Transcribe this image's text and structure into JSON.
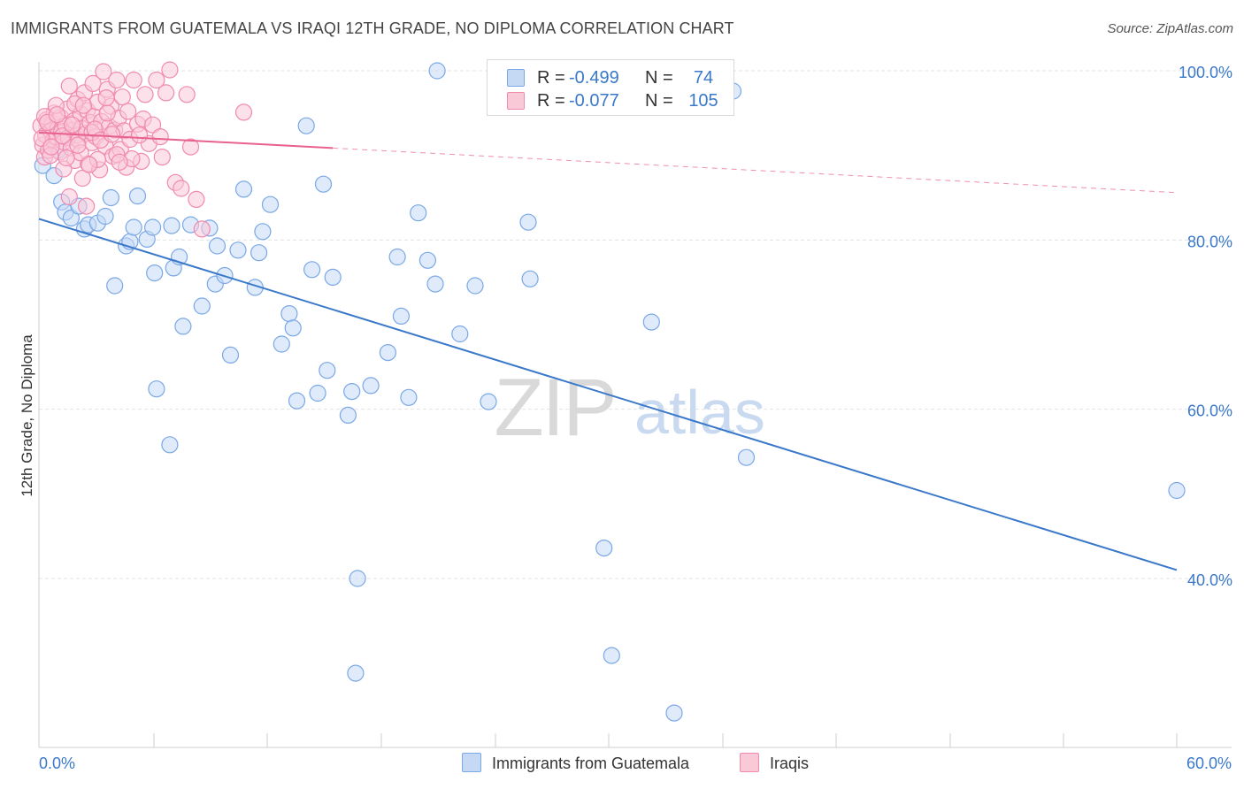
{
  "header": {
    "title": "IMMIGRANTS FROM GUATEMALA VS IRAQI 12TH GRADE, NO DIPLOMA CORRELATION CHART",
    "source": "Source: ZipAtlas.com"
  },
  "watermark": {
    "zip": "ZIP",
    "atlas": "atlas"
  },
  "legend": {
    "r_label": "R =",
    "n_label": "N =",
    "rows": [
      {
        "r": "-0.499",
        "n": "74",
        "fill": "#c5d9f5",
        "stroke": "#7aa8e6"
      },
      {
        "r": "-0.077",
        "n": "105",
        "fill": "#f9c9d8",
        "stroke": "#f08aae"
      }
    ]
  },
  "chart_data": {
    "type": "scatter",
    "title": "IMMIGRANTS FROM GUATEMALA VS IRAQI 12TH GRADE, NO DIPLOMA CORRELATION CHART",
    "xlabel": "",
    "ylabel": "12th Grade, No Diploma",
    "xlim": [
      0,
      60
    ],
    "ylim": [
      20,
      102
    ],
    "x_tick_labels": [
      "0.0%",
      "60.0%"
    ],
    "y_ticks": [
      40,
      60,
      80,
      100
    ],
    "y_tick_labels": [
      "40.0%",
      "60.0%",
      "80.0%",
      "100.0%"
    ],
    "grid": true,
    "legend_position": "bottom",
    "series": [
      {
        "name": "Immigrants from Guatemala",
        "color": "#3a78c9",
        "fill": "#c5d9f5",
        "stroke": "#7aa8e6",
        "R": -0.499,
        "N": 74,
        "trend": {
          "x0": 0,
          "y0": 82.5,
          "x1": 60,
          "y1": 41.0,
          "solid_until": 60
        },
        "points": [
          [
            0.2,
            88.8
          ],
          [
            0.8,
            87.6
          ],
          [
            1.2,
            84.5
          ],
          [
            1.4,
            83.3
          ],
          [
            1.7,
            82.6
          ],
          [
            2.1,
            84.0
          ],
          [
            2.4,
            81.3
          ],
          [
            2.6,
            81.8
          ],
          [
            3.1,
            82.0
          ],
          [
            3.5,
            82.8
          ],
          [
            3.8,
            85.0
          ],
          [
            4.6,
            79.3
          ],
          [
            4.0,
            74.6
          ],
          [
            4.8,
            79.8
          ],
          [
            5.0,
            81.5
          ],
          [
            5.2,
            85.2
          ],
          [
            5.7,
            80.1
          ],
          [
            6.0,
            81.5
          ],
          [
            6.1,
            76.1
          ],
          [
            7.0,
            81.7
          ],
          [
            7.1,
            76.7
          ],
          [
            7.4,
            78.0
          ],
          [
            7.6,
            69.8
          ],
          [
            8.0,
            81.8
          ],
          [
            8.6,
            72.2
          ],
          [
            9.0,
            81.4
          ],
          [
            9.3,
            74.8
          ],
          [
            9.4,
            79.3
          ],
          [
            9.8,
            75.8
          ],
          [
            10.1,
            66.4
          ],
          [
            10.5,
            78.8
          ],
          [
            10.8,
            86.0
          ],
          [
            11.4,
            74.4
          ],
          [
            11.6,
            78.5
          ],
          [
            11.8,
            81.0
          ],
          [
            12.2,
            84.2
          ],
          [
            12.8,
            67.7
          ],
          [
            13.2,
            71.3
          ],
          [
            13.4,
            69.6
          ],
          [
            13.6,
            61.0
          ],
          [
            14.1,
            93.5
          ],
          [
            14.4,
            76.5
          ],
          [
            14.7,
            61.9
          ],
          [
            15.0,
            86.6
          ],
          [
            15.2,
            64.6
          ],
          [
            15.5,
            75.6
          ],
          [
            16.3,
            59.3
          ],
          [
            16.5,
            62.1
          ],
          [
            16.7,
            28.8
          ],
          [
            16.8,
            40.0
          ],
          [
            17.5,
            62.8
          ],
          [
            18.4,
            66.7
          ],
          [
            18.9,
            78.0
          ],
          [
            19.1,
            71.0
          ],
          [
            19.5,
            61.4
          ],
          [
            20.0,
            83.2
          ],
          [
            20.5,
            77.6
          ],
          [
            20.9,
            74.8
          ],
          [
            21.0,
            100.0
          ],
          [
            22.2,
            68.9
          ],
          [
            23.0,
            74.6
          ],
          [
            23.7,
            60.9
          ],
          [
            25.8,
            82.1
          ],
          [
            25.9,
            75.4
          ],
          [
            29.8,
            43.6
          ],
          [
            30.2,
            30.9
          ],
          [
            32.3,
            70.3
          ],
          [
            33.5,
            24.1
          ],
          [
            36.6,
            97.6
          ],
          [
            37.3,
            54.3
          ],
          [
            6.9,
            55.8
          ],
          [
            6.2,
            62.4
          ],
          [
            60.0,
            50.4
          ],
          [
            1.0,
            90.6
          ]
        ]
      },
      {
        "name": "Iraqis",
        "color": "#e8608f",
        "fill": "#f9c9d8",
        "stroke": "#f08aae",
        "R": -0.077,
        "N": 105,
        "trend": {
          "x0": 0,
          "y0": 92.7,
          "x1": 60,
          "y1": 85.6,
          "solid_until": 15.5
        },
        "points": [
          [
            0.1,
            93.5
          ],
          [
            0.2,
            91.2
          ],
          [
            0.3,
            89.8
          ],
          [
            0.35,
            92.4
          ],
          [
            0.4,
            94.2
          ],
          [
            0.5,
            90.6
          ],
          [
            0.6,
            92.9
          ],
          [
            0.7,
            93.8
          ],
          [
            0.75,
            91.8
          ],
          [
            0.8,
            95.0
          ],
          [
            0.9,
            92.2
          ],
          [
            1.0,
            93.2
          ],
          [
            1.1,
            90.4
          ],
          [
            1.15,
            94.5
          ],
          [
            1.2,
            92.8
          ],
          [
            1.3,
            91.6
          ],
          [
            1.4,
            93.5
          ],
          [
            1.5,
            95.5
          ],
          [
            1.55,
            92.1
          ],
          [
            1.6,
            98.2
          ],
          [
            1.7,
            90.9
          ],
          [
            1.8,
            93.0
          ],
          [
            1.85,
            94.1
          ],
          [
            1.9,
            89.4
          ],
          [
            2.0,
            92.4
          ],
          [
            2.05,
            96.6
          ],
          [
            2.1,
            91.8
          ],
          [
            2.2,
            94.9
          ],
          [
            2.25,
            93.2
          ],
          [
            2.3,
            87.3
          ],
          [
            2.4,
            97.4
          ],
          [
            2.5,
            92.6
          ],
          [
            2.55,
            95.3
          ],
          [
            2.6,
            89.0
          ],
          [
            2.7,
            93.9
          ],
          [
            2.8,
            91.5
          ],
          [
            2.85,
            98.5
          ],
          [
            2.9,
            94.6
          ],
          [
            3.0,
            92.2
          ],
          [
            3.1,
            96.3
          ],
          [
            3.2,
            88.3
          ],
          [
            3.3,
            94.0
          ],
          [
            3.4,
            99.9
          ],
          [
            3.5,
            91.1
          ],
          [
            3.6,
            97.8
          ],
          [
            3.7,
            93.4
          ],
          [
            3.8,
            95.8
          ],
          [
            3.9,
            89.9
          ],
          [
            4.0,
            93.0
          ],
          [
            4.1,
            98.9
          ],
          [
            4.2,
            94.4
          ],
          [
            4.3,
            90.7
          ],
          [
            4.4,
            96.9
          ],
          [
            4.5,
            92.9
          ],
          [
            4.6,
            88.6
          ],
          [
            4.7,
            95.2
          ],
          [
            4.8,
            91.9
          ],
          [
            5.0,
            98.9
          ],
          [
            5.2,
            93.7
          ],
          [
            5.4,
            89.3
          ],
          [
            5.5,
            94.3
          ],
          [
            5.6,
            97.2
          ],
          [
            5.8,
            91.4
          ],
          [
            6.0,
            93.6
          ],
          [
            6.2,
            98.9
          ],
          [
            6.4,
            92.2
          ],
          [
            6.5,
            89.8
          ],
          [
            6.7,
            97.4
          ],
          [
            6.9,
            100.1
          ],
          [
            7.2,
            86.8
          ],
          [
            7.5,
            86.1
          ],
          [
            7.8,
            97.2
          ],
          [
            8.0,
            91.0
          ],
          [
            8.3,
            84.8
          ],
          [
            8.6,
            81.3
          ],
          [
            10.8,
            95.1
          ],
          [
            0.3,
            94.6
          ],
          [
            0.6,
            90.0
          ],
          [
            0.9,
            95.9
          ],
          [
            1.3,
            88.4
          ],
          [
            1.6,
            85.1
          ],
          [
            1.9,
            96.1
          ],
          [
            2.2,
            90.3
          ],
          [
            2.5,
            84.0
          ],
          [
            2.8,
            92.7
          ],
          [
            3.1,
            89.5
          ],
          [
            3.6,
            95.0
          ],
          [
            4.1,
            90.1
          ],
          [
            4.9,
            89.6
          ],
          [
            5.3,
            92.4
          ],
          [
            0.15,
            92.0
          ],
          [
            0.45,
            93.9
          ],
          [
            0.65,
            91.0
          ],
          [
            0.95,
            94.8
          ],
          [
            1.25,
            92.3
          ],
          [
            1.45,
            89.7
          ],
          [
            1.75,
            93.6
          ],
          [
            2.05,
            91.2
          ],
          [
            2.35,
            95.9
          ],
          [
            2.65,
            88.9
          ],
          [
            2.95,
            93.1
          ],
          [
            3.25,
            91.8
          ],
          [
            3.55,
            96.8
          ],
          [
            3.85,
            92.5
          ],
          [
            4.25,
            89.2
          ]
        ]
      }
    ]
  },
  "bottom_legend": [
    {
      "label": "Immigrants from Guatemala",
      "fill": "#c5d9f5",
      "stroke": "#7aa8e6"
    },
    {
      "label": "Iraqis",
      "fill": "#f9c9d8",
      "stroke": "#f08aae"
    }
  ]
}
